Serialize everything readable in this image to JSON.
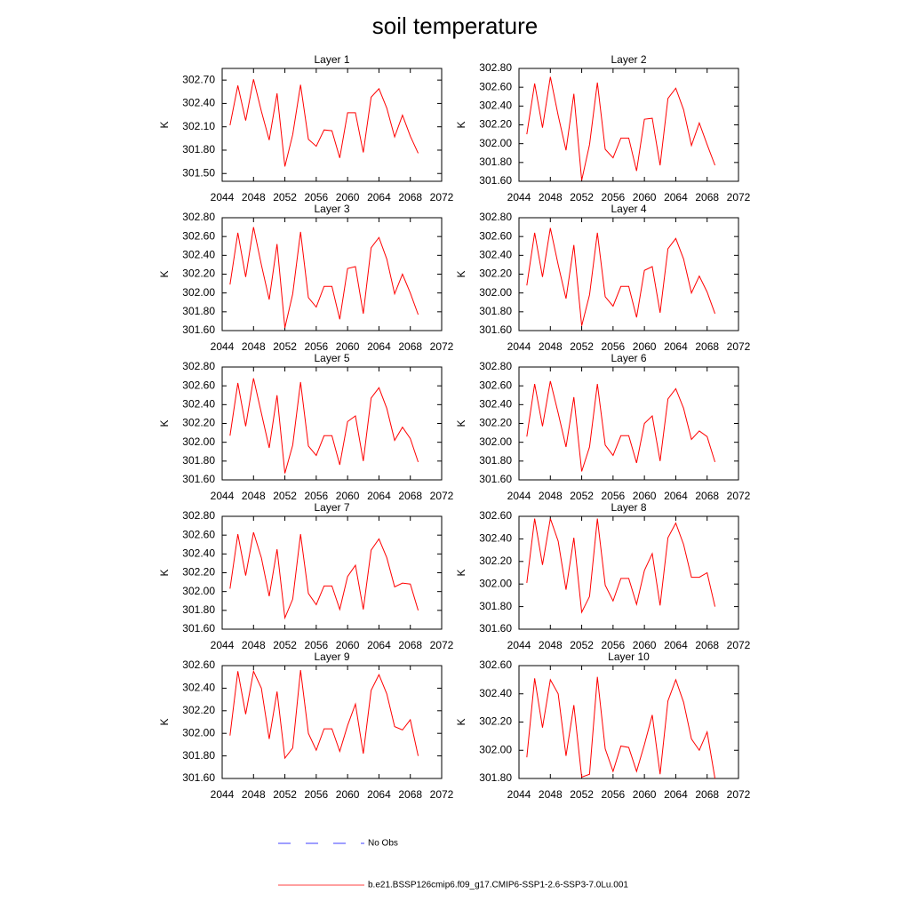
{
  "title": "soil temperature",
  "legend": [
    {
      "name": "No Obs",
      "color": "#0000ff",
      "dash": true
    },
    {
      "name": "b.e21.BSSP126cmip6.f09_g17.CMIP6-SSP1-2.6-SSP3-7.0Lu.001",
      "color": "#ff0000",
      "dash": false
    }
  ],
  "chart_data": [
    {
      "type": "line",
      "title": "Layer 1",
      "ylabel": "K",
      "grid": false,
      "x": [
        2045,
        2046,
        2047,
        2048,
        2049,
        2050,
        2051,
        2052,
        2053,
        2054,
        2055,
        2056,
        2057,
        2058,
        2059,
        2060,
        2061,
        2062,
        2063,
        2064,
        2065,
        2066,
        2067,
        2068,
        2069
      ],
      "xlim": [
        2044,
        2072
      ],
      "xticks": [
        2044,
        2048,
        2052,
        2056,
        2060,
        2064,
        2068,
        2072
      ],
      "ylim": [
        301.4,
        302.85
      ],
      "yticks": [
        {
          "value": 301.5,
          "label": "301.50"
        },
        {
          "value": 301.8,
          "label": "301.80"
        },
        {
          "value": 302.1,
          "label": "302.10"
        },
        {
          "value": 302.4,
          "label": "302.40"
        },
        {
          "value": 302.7,
          "label": "302.70"
        }
      ],
      "series": [
        {
          "color": "#ff0000",
          "values": [
            302.12,
            302.63,
            302.18,
            302.71,
            302.3,
            301.93,
            302.53,
            301.59,
            302.0,
            302.64,
            301.94,
            301.85,
            302.06,
            302.05,
            301.7,
            302.28,
            302.28,
            301.77,
            302.48,
            302.59,
            302.34,
            301.97,
            302.25,
            301.98,
            301.76
          ]
        }
      ]
    },
    {
      "type": "line",
      "title": "Layer 2",
      "ylabel": "K",
      "grid": false,
      "x": [
        2045,
        2046,
        2047,
        2048,
        2049,
        2050,
        2051,
        2052,
        2053,
        2054,
        2055,
        2056,
        2057,
        2058,
        2059,
        2060,
        2061,
        2062,
        2063,
        2064,
        2065,
        2066,
        2067,
        2068,
        2069
      ],
      "xlim": [
        2044,
        2072
      ],
      "xticks": [
        2044,
        2048,
        2052,
        2056,
        2060,
        2064,
        2068,
        2072
      ],
      "ylim": [
        301.6,
        302.8
      ],
      "yticks": [
        {
          "value": 301.6,
          "label": "301.60"
        },
        {
          "value": 301.8,
          "label": "301.80"
        },
        {
          "value": 302.0,
          "label": "302.00"
        },
        {
          "value": 302.2,
          "label": "302.20"
        },
        {
          "value": 302.4,
          "label": "302.40"
        },
        {
          "value": 302.6,
          "label": "302.60"
        },
        {
          "value": 302.8,
          "label": "302.80"
        }
      ],
      "series": [
        {
          "color": "#ff0000",
          "values": [
            302.1,
            302.64,
            302.17,
            302.71,
            302.3,
            301.93,
            302.53,
            301.61,
            301.99,
            302.65,
            301.94,
            301.85,
            302.06,
            302.06,
            301.71,
            302.26,
            302.27,
            301.77,
            302.48,
            302.59,
            302.36,
            301.98,
            302.22,
            301.99,
            301.77
          ]
        }
      ]
    },
    {
      "type": "line",
      "title": "Layer 3",
      "ylabel": "K",
      "grid": false,
      "x": [
        2045,
        2046,
        2047,
        2048,
        2049,
        2050,
        2051,
        2052,
        2053,
        2054,
        2055,
        2056,
        2057,
        2058,
        2059,
        2060,
        2061,
        2062,
        2063,
        2064,
        2065,
        2066,
        2067,
        2068,
        2069
      ],
      "xlim": [
        2044,
        2072
      ],
      "xticks": [
        2044,
        2048,
        2052,
        2056,
        2060,
        2064,
        2068,
        2072
      ],
      "ylim": [
        301.6,
        302.8
      ],
      "yticks": [
        {
          "value": 301.6,
          "label": "301.60"
        },
        {
          "value": 301.8,
          "label": "301.80"
        },
        {
          "value": 302.0,
          "label": "302.00"
        },
        {
          "value": 302.2,
          "label": "302.20"
        },
        {
          "value": 302.4,
          "label": "302.40"
        },
        {
          "value": 302.6,
          "label": "302.60"
        },
        {
          "value": 302.8,
          "label": "302.80"
        }
      ],
      "series": [
        {
          "color": "#ff0000",
          "values": [
            302.09,
            302.64,
            302.17,
            302.7,
            302.3,
            301.93,
            302.52,
            301.63,
            301.99,
            302.65,
            301.95,
            301.85,
            302.07,
            302.07,
            301.72,
            302.26,
            302.28,
            301.78,
            302.48,
            302.59,
            302.36,
            301.99,
            302.2,
            302.0,
            301.77
          ]
        }
      ]
    },
    {
      "type": "line",
      "title": "Layer 4",
      "ylabel": "K",
      "grid": false,
      "x": [
        2045,
        2046,
        2047,
        2048,
        2049,
        2050,
        2051,
        2052,
        2053,
        2054,
        2055,
        2056,
        2057,
        2058,
        2059,
        2060,
        2061,
        2062,
        2063,
        2064,
        2065,
        2066,
        2067,
        2068,
        2069
      ],
      "xlim": [
        2044,
        2072
      ],
      "xticks": [
        2044,
        2048,
        2052,
        2056,
        2060,
        2064,
        2068,
        2072
      ],
      "ylim": [
        301.6,
        302.8
      ],
      "yticks": [
        {
          "value": 301.6,
          "label": "301.60"
        },
        {
          "value": 301.8,
          "label": "301.80"
        },
        {
          "value": 302.0,
          "label": "302.00"
        },
        {
          "value": 302.2,
          "label": "302.20"
        },
        {
          "value": 302.4,
          "label": "302.40"
        },
        {
          "value": 302.6,
          "label": "302.60"
        },
        {
          "value": 302.8,
          "label": "302.80"
        }
      ],
      "series": [
        {
          "color": "#ff0000",
          "values": [
            302.08,
            302.64,
            302.17,
            302.69,
            302.3,
            301.94,
            302.51,
            301.65,
            301.98,
            302.64,
            301.96,
            301.86,
            302.07,
            302.07,
            301.74,
            302.24,
            302.28,
            301.79,
            302.47,
            302.58,
            302.36,
            302.0,
            302.18,
            302.01,
            301.78
          ]
        }
      ]
    },
    {
      "type": "line",
      "title": "Layer 5",
      "ylabel": "K",
      "grid": false,
      "x": [
        2045,
        2046,
        2047,
        2048,
        2049,
        2050,
        2051,
        2052,
        2053,
        2054,
        2055,
        2056,
        2057,
        2058,
        2059,
        2060,
        2061,
        2062,
        2063,
        2064,
        2065,
        2066,
        2067,
        2068,
        2069
      ],
      "xlim": [
        2044,
        2072
      ],
      "xticks": [
        2044,
        2048,
        2052,
        2056,
        2060,
        2064,
        2068,
        2072
      ],
      "ylim": [
        301.6,
        302.8
      ],
      "yticks": [
        {
          "value": 301.6,
          "label": "301.60"
        },
        {
          "value": 301.8,
          "label": "301.80"
        },
        {
          "value": 302.0,
          "label": "302.00"
        },
        {
          "value": 302.2,
          "label": "302.20"
        },
        {
          "value": 302.4,
          "label": "302.40"
        },
        {
          "value": 302.6,
          "label": "302.60"
        },
        {
          "value": 302.8,
          "label": "302.80"
        }
      ],
      "series": [
        {
          "color": "#ff0000",
          "values": [
            302.07,
            302.63,
            302.17,
            302.68,
            302.31,
            301.94,
            302.5,
            301.67,
            301.97,
            302.64,
            301.96,
            301.86,
            302.07,
            302.07,
            301.76,
            302.22,
            302.28,
            301.8,
            302.47,
            302.58,
            302.36,
            302.02,
            302.16,
            302.04,
            301.79
          ]
        }
      ]
    },
    {
      "type": "line",
      "title": "Layer 6",
      "ylabel": "K",
      "grid": false,
      "x": [
        2045,
        2046,
        2047,
        2048,
        2049,
        2050,
        2051,
        2052,
        2053,
        2054,
        2055,
        2056,
        2057,
        2058,
        2059,
        2060,
        2061,
        2062,
        2063,
        2064,
        2065,
        2066,
        2067,
        2068,
        2069
      ],
      "xlim": [
        2044,
        2072
      ],
      "xticks": [
        2044,
        2048,
        2052,
        2056,
        2060,
        2064,
        2068,
        2072
      ],
      "ylim": [
        301.6,
        302.8
      ],
      "yticks": [
        {
          "value": 301.6,
          "label": "301.60"
        },
        {
          "value": 301.8,
          "label": "301.80"
        },
        {
          "value": 302.0,
          "label": "302.00"
        },
        {
          "value": 302.2,
          "label": "302.20"
        },
        {
          "value": 302.4,
          "label": "302.40"
        },
        {
          "value": 302.6,
          "label": "302.60"
        },
        {
          "value": 302.8,
          "label": "302.80"
        }
      ],
      "series": [
        {
          "color": "#ff0000",
          "values": [
            302.06,
            302.62,
            302.17,
            302.65,
            302.31,
            301.95,
            302.48,
            301.69,
            301.95,
            302.62,
            301.97,
            301.86,
            302.07,
            302.07,
            301.78,
            302.2,
            302.28,
            301.8,
            302.46,
            302.57,
            302.36,
            302.03,
            302.12,
            302.06,
            301.79
          ]
        }
      ]
    },
    {
      "type": "line",
      "title": "Layer 7",
      "ylabel": "K",
      "grid": false,
      "x": [
        2045,
        2046,
        2047,
        2048,
        2049,
        2050,
        2051,
        2052,
        2053,
        2054,
        2055,
        2056,
        2057,
        2058,
        2059,
        2060,
        2061,
        2062,
        2063,
        2064,
        2065,
        2066,
        2067,
        2068,
        2069
      ],
      "xlim": [
        2044,
        2072
      ],
      "xticks": [
        2044,
        2048,
        2052,
        2056,
        2060,
        2064,
        2068,
        2072
      ],
      "ylim": [
        301.6,
        302.8
      ],
      "yticks": [
        {
          "value": 301.6,
          "label": "301.60"
        },
        {
          "value": 301.8,
          "label": "301.80"
        },
        {
          "value": 302.0,
          "label": "302.00"
        },
        {
          "value": 302.2,
          "label": "302.20"
        },
        {
          "value": 302.4,
          "label": "302.40"
        },
        {
          "value": 302.6,
          "label": "302.60"
        },
        {
          "value": 302.8,
          "label": "302.80"
        }
      ],
      "series": [
        {
          "color": "#ff0000",
          "values": [
            302.03,
            302.61,
            302.17,
            302.63,
            302.36,
            301.95,
            302.45,
            301.72,
            301.92,
            302.61,
            301.98,
            301.86,
            302.06,
            302.06,
            301.81,
            302.16,
            302.28,
            301.81,
            302.44,
            302.56,
            302.36,
            302.05,
            302.09,
            302.08,
            301.8
          ]
        }
      ]
    },
    {
      "type": "line",
      "title": "Layer 8",
      "ylabel": "K",
      "grid": false,
      "x": [
        2045,
        2046,
        2047,
        2048,
        2049,
        2050,
        2051,
        2052,
        2053,
        2054,
        2055,
        2056,
        2057,
        2058,
        2059,
        2060,
        2061,
        2062,
        2063,
        2064,
        2065,
        2066,
        2067,
        2068,
        2069
      ],
      "xlim": [
        2044,
        2072
      ],
      "xticks": [
        2044,
        2048,
        2052,
        2056,
        2060,
        2064,
        2068,
        2072
      ],
      "ylim": [
        301.6,
        302.6
      ],
      "yticks": [
        {
          "value": 301.6,
          "label": "301.60"
        },
        {
          "value": 301.8,
          "label": "301.80"
        },
        {
          "value": 302.0,
          "label": "302.00"
        },
        {
          "value": 302.2,
          "label": "302.20"
        },
        {
          "value": 302.4,
          "label": "302.40"
        },
        {
          "value": 302.6,
          "label": "302.60"
        }
      ],
      "series": [
        {
          "color": "#ff0000",
          "values": [
            302.01,
            302.58,
            302.17,
            302.58,
            302.38,
            301.95,
            302.41,
            301.75,
            301.89,
            302.58,
            301.99,
            301.85,
            302.05,
            302.05,
            301.82,
            302.12,
            302.27,
            301.81,
            302.41,
            302.54,
            302.35,
            302.06,
            302.06,
            302.1,
            301.8
          ]
        }
      ]
    },
    {
      "type": "line",
      "title": "Layer 9",
      "ylabel": "K",
      "grid": false,
      "x": [
        2045,
        2046,
        2047,
        2048,
        2049,
        2050,
        2051,
        2052,
        2053,
        2054,
        2055,
        2056,
        2057,
        2058,
        2059,
        2060,
        2061,
        2062,
        2063,
        2064,
        2065,
        2066,
        2067,
        2068,
        2069
      ],
      "xlim": [
        2044,
        2072
      ],
      "xticks": [
        2044,
        2048,
        2052,
        2056,
        2060,
        2064,
        2068,
        2072
      ],
      "ylim": [
        301.6,
        302.6
      ],
      "yticks": [
        {
          "value": 301.6,
          "label": "301.60"
        },
        {
          "value": 301.8,
          "label": "301.80"
        },
        {
          "value": 302.0,
          "label": "302.00"
        },
        {
          "value": 302.2,
          "label": "302.20"
        },
        {
          "value": 302.4,
          "label": "302.40"
        },
        {
          "value": 302.6,
          "label": "302.60"
        }
      ],
      "series": [
        {
          "color": "#ff0000",
          "values": [
            301.98,
            302.55,
            302.17,
            302.55,
            302.4,
            301.95,
            302.37,
            301.78,
            301.87,
            302.56,
            302.0,
            301.85,
            302.04,
            302.04,
            301.84,
            302.07,
            302.26,
            301.82,
            302.38,
            302.52,
            302.35,
            302.06,
            302.03,
            302.12,
            301.8
          ]
        }
      ]
    },
    {
      "type": "line",
      "title": "Layer 10",
      "ylabel": "K",
      "grid": false,
      "x": [
        2045,
        2046,
        2047,
        2048,
        2049,
        2050,
        2051,
        2052,
        2053,
        2054,
        2055,
        2056,
        2057,
        2058,
        2059,
        2060,
        2061,
        2062,
        2063,
        2064,
        2065,
        2066,
        2067,
        2068,
        2069
      ],
      "xlim": [
        2044,
        2072
      ],
      "xticks": [
        2044,
        2048,
        2052,
        2056,
        2060,
        2064,
        2068,
        2072
      ],
      "ylim": [
        301.8,
        302.6
      ],
      "yticks": [
        {
          "value": 301.8,
          "label": "301.80"
        },
        {
          "value": 302.0,
          "label": "302.00"
        },
        {
          "value": 302.2,
          "label": "302.20"
        },
        {
          "value": 302.4,
          "label": "302.40"
        },
        {
          "value": 302.6,
          "label": "302.60"
        }
      ],
      "series": [
        {
          "color": "#ff0000",
          "values": [
            301.95,
            302.51,
            302.16,
            302.5,
            302.4,
            301.96,
            302.32,
            301.81,
            301.83,
            302.52,
            302.01,
            301.85,
            302.03,
            302.02,
            301.85,
            302.04,
            302.25,
            301.83,
            302.35,
            302.5,
            302.34,
            302.08,
            302.0,
            302.13,
            301.8
          ]
        }
      ]
    }
  ]
}
